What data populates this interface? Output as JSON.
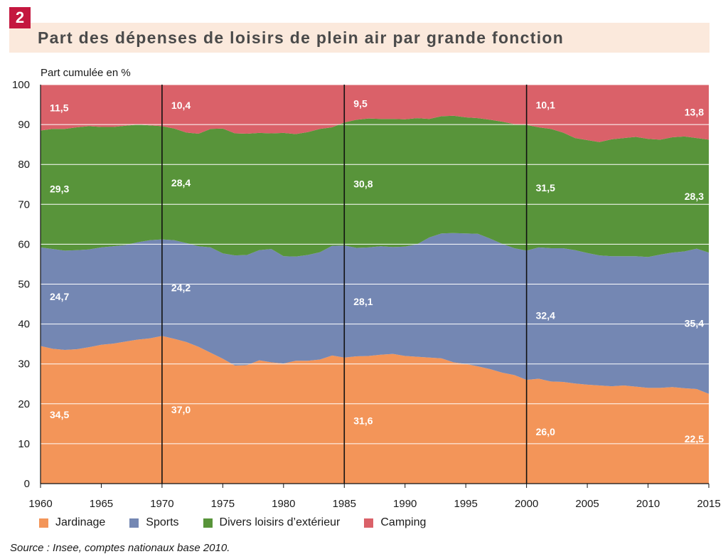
{
  "figure": {
    "number": "2",
    "title": "Part des dépenses de loisirs de plein air par grande fonction",
    "source": "Source : Insee, comptes nationaux base 2010."
  },
  "chart_data": {
    "type": "area",
    "stacked": true,
    "ylabel": "Part cumulée en %",
    "ylim": [
      0,
      100
    ],
    "xlim": [
      1960,
      2015
    ],
    "y_ticks": [
      "0",
      "10",
      "20",
      "30",
      "40",
      "50",
      "60",
      "70",
      "80",
      "90",
      "100"
    ],
    "x_ticks": [
      "1960",
      "1965",
      "1970",
      "1975",
      "1980",
      "1985",
      "1990",
      "1995",
      "2000",
      "2005",
      "2010",
      "2015"
    ],
    "vertical_markers": [
      1970,
      1985,
      2000
    ],
    "grid": true,
    "legend_position": "bottom",
    "x": [
      1960,
      1961,
      1962,
      1963,
      1964,
      1965,
      1966,
      1967,
      1968,
      1969,
      1970,
      1971,
      1972,
      1973,
      1974,
      1975,
      1976,
      1977,
      1978,
      1979,
      1980,
      1981,
      1982,
      1983,
      1984,
      1985,
      1986,
      1987,
      1988,
      1989,
      1990,
      1991,
      1992,
      1993,
      1994,
      1995,
      1996,
      1997,
      1998,
      1999,
      2000,
      2001,
      2002,
      2003,
      2004,
      2005,
      2006,
      2007,
      2008,
      2009,
      2010,
      2011,
      2012,
      2013,
      2014,
      2015
    ],
    "series": [
      {
        "name": "Jardinage",
        "color": "#f39559",
        "values": [
          34.5,
          33.8,
          33.5,
          33.7,
          34.2,
          34.8,
          35.1,
          35.6,
          36.1,
          36.4,
          37.0,
          36.3,
          35.5,
          34.3,
          32.8,
          31.3,
          29.6,
          29.7,
          30.9,
          30.4,
          30.1,
          30.8,
          30.8,
          31.1,
          32.1,
          31.6,
          31.9,
          32.0,
          32.3,
          32.5,
          32.0,
          31.8,
          31.6,
          31.4,
          30.4,
          30.0,
          29.4,
          28.7,
          27.8,
          27.2,
          26.0,
          26.3,
          25.6,
          25.5,
          25.1,
          24.8,
          24.6,
          24.4,
          24.6,
          24.3,
          24.0,
          24.0,
          24.2,
          23.9,
          23.7,
          22.5
        ]
      },
      {
        "name": "Sports",
        "color": "#7487b3",
        "values": [
          24.7,
          25.0,
          24.9,
          24.8,
          24.5,
          24.4,
          24.4,
          24.2,
          24.4,
          24.6,
          24.2,
          24.7,
          24.8,
          25.2,
          26.4,
          26.4,
          27.6,
          27.6,
          27.6,
          28.4,
          26.9,
          26.1,
          26.5,
          26.9,
          27.5,
          28.1,
          27.2,
          27.2,
          27.2,
          26.8,
          27.4,
          28.2,
          30.1,
          31.3,
          32.4,
          32.7,
          33.2,
          32.7,
          32.3,
          31.8,
          32.4,
          32.9,
          33.4,
          33.5,
          33.4,
          33.0,
          32.6,
          32.6,
          32.4,
          32.7,
          32.8,
          33.4,
          33.7,
          34.3,
          35.2,
          35.4
        ]
      },
      {
        "name": "Divers loisirs d’extérieur",
        "color": "#58943a",
        "values": [
          29.3,
          30.1,
          30.5,
          30.8,
          30.9,
          30.2,
          29.9,
          29.9,
          29.5,
          28.8,
          28.4,
          28.0,
          27.7,
          28.2,
          29.7,
          31.3,
          30.6,
          30.4,
          29.4,
          29.0,
          30.9,
          30.7,
          30.8,
          30.9,
          29.7,
          30.8,
          32.1,
          32.3,
          31.9,
          32.1,
          31.9,
          31.6,
          29.7,
          29.4,
          29.4,
          29.1,
          29.0,
          29.8,
          30.6,
          31.1,
          31.5,
          30.1,
          29.9,
          29.0,
          28.1,
          28.3,
          28.4,
          29.3,
          29.6,
          29.9,
          29.6,
          28.8,
          28.9,
          28.8,
          27.7,
          28.3
        ]
      },
      {
        "name": "Camping",
        "color": "#da6169",
        "values": [
          11.5,
          11.1,
          11.1,
          10.7,
          10.4,
          10.6,
          10.6,
          10.3,
          10.0,
          10.2,
          10.4,
          11.0,
          12.0,
          12.3,
          11.1,
          11.0,
          12.2,
          12.3,
          12.1,
          12.2,
          12.1,
          12.4,
          11.9,
          11.1,
          10.7,
          9.5,
          8.8,
          8.5,
          8.6,
          8.6,
          8.7,
          8.4,
          8.6,
          7.9,
          7.8,
          8.2,
          8.4,
          8.8,
          9.3,
          9.9,
          10.1,
          10.7,
          11.1,
          12.0,
          13.4,
          13.9,
          14.4,
          13.7,
          13.4,
          13.1,
          13.6,
          13.8,
          13.2,
          13.0,
          13.4,
          13.8
        ]
      }
    ],
    "data_labels": [
      {
        "year": 1960,
        "series": "Jardinage",
        "text": "34,5"
      },
      {
        "year": 1960,
        "series": "Sports",
        "text": "24,7"
      },
      {
        "year": 1960,
        "series": "Divers loisirs d’extérieur",
        "text": "29,3"
      },
      {
        "year": 1960,
        "series": "Camping",
        "text": "11,5"
      },
      {
        "year": 1970,
        "series": "Jardinage",
        "text": "37,0"
      },
      {
        "year": 1970,
        "series": "Sports",
        "text": "24,2"
      },
      {
        "year": 1970,
        "series": "Divers loisirs d’extérieur",
        "text": "28,4"
      },
      {
        "year": 1970,
        "series": "Camping",
        "text": "10,4"
      },
      {
        "year": 1985,
        "series": "Jardinage",
        "text": "31,6"
      },
      {
        "year": 1985,
        "series": "Sports",
        "text": "28,1"
      },
      {
        "year": 1985,
        "series": "Divers loisirs d’extérieur",
        "text": "30,8"
      },
      {
        "year": 1985,
        "series": "Camping",
        "text": "9,5"
      },
      {
        "year": 2000,
        "series": "Jardinage",
        "text": "26,0"
      },
      {
        "year": 2000,
        "series": "Sports",
        "text": "32,4"
      },
      {
        "year": 2000,
        "series": "Divers loisirs d’extérieur",
        "text": "31,5"
      },
      {
        "year": 2000,
        "series": "Camping",
        "text": "10,1"
      },
      {
        "year": 2015,
        "series": "Jardinage",
        "text": "22,5"
      },
      {
        "year": 2015,
        "series": "Sports",
        "text": "35,4"
      },
      {
        "year": 2015,
        "series": "Divers loisirs d’extérieur",
        "text": "28,3"
      },
      {
        "year": 2015,
        "series": "Camping",
        "text": "13,8"
      }
    ]
  }
}
